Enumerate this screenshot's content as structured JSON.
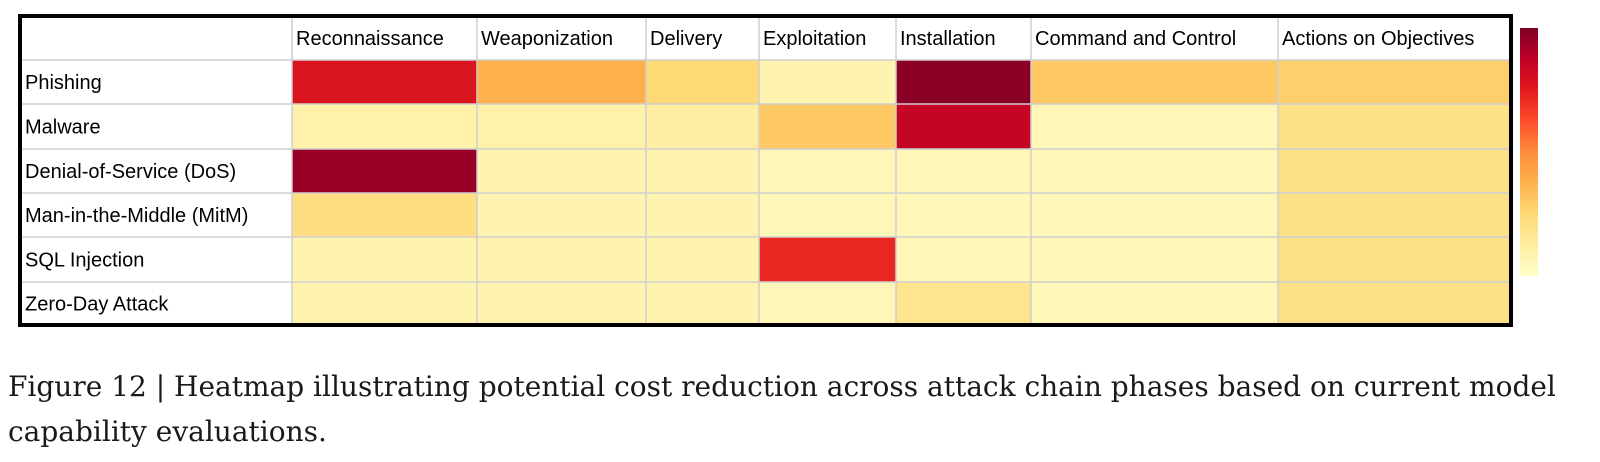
{
  "chart_data": {
    "type": "heatmap",
    "title": "",
    "xlabel": "",
    "ylabel": "",
    "columns": [
      "Reconnaissance",
      "Weaponization",
      "Delivery",
      "Exploitation",
      "Installation",
      "Command and Control",
      "Actions on Objectives"
    ],
    "rows": [
      "Phishing",
      "Malware",
      "Denial-of-Service (DoS)",
      "Man-in-the-Middle (MitM)",
      "SQL Injection",
      "Zero-Day Attack"
    ],
    "values": [
      [
        0.78,
        0.38,
        0.25,
        0.08,
        0.98,
        0.3,
        0.28
      ],
      [
        0.1,
        0.1,
        0.12,
        0.3,
        0.85,
        0.06,
        0.2
      ],
      [
        0.95,
        0.08,
        0.08,
        0.06,
        0.06,
        0.06,
        0.2
      ],
      [
        0.22,
        0.08,
        0.08,
        0.06,
        0.06,
        0.06,
        0.2
      ],
      [
        0.08,
        0.08,
        0.08,
        0.72,
        0.06,
        0.06,
        0.2
      ],
      [
        0.08,
        0.08,
        0.08,
        0.06,
        0.18,
        0.06,
        0.2
      ]
    ],
    "value_range": [
      0,
      1
    ],
    "colorscale": [
      "#ffffcc",
      "#ffeda0",
      "#fed976",
      "#feb24c",
      "#fd8d3c",
      "#fc4e2a",
      "#e31a1c",
      "#bd0026",
      "#800026"
    ],
    "colorbar": true,
    "colorbar_ticks": false,
    "grid": true
  },
  "caption": {
    "text": "Figure 12 | Heatmap illustrating potential cost reduction across attack chain phases based on current model capability evaluations."
  }
}
